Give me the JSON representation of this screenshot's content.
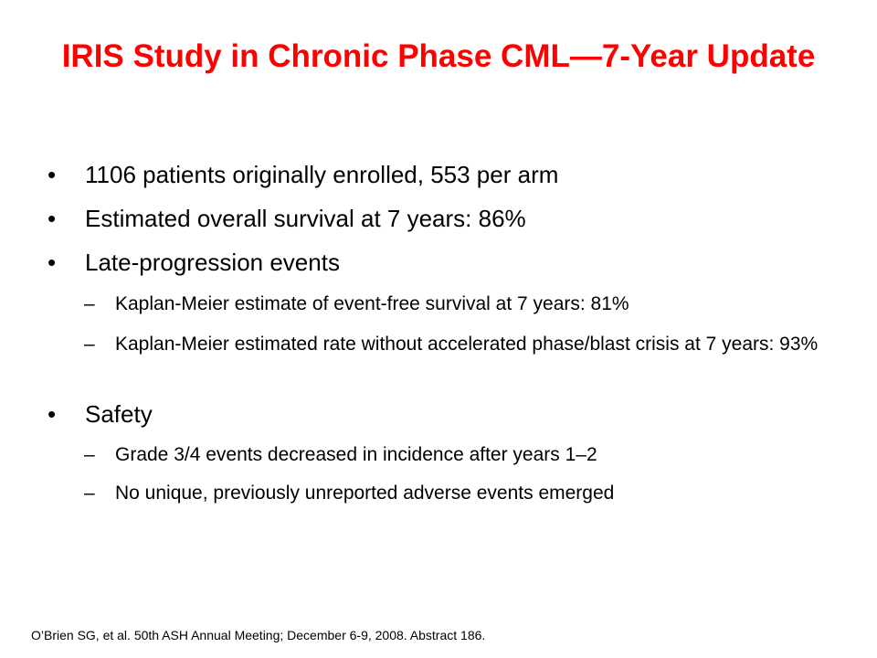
{
  "title": "IRIS Study in Chronic Phase CML—7-Year Update",
  "bullet_marker": "•",
  "sub_marker": "–",
  "bullets": [
    {
      "text": "1106 patients originally enrolled, 553 per arm"
    },
    {
      "text": "Estimated overall survival at 7 years: 86%"
    },
    {
      "text": "Late-progression events",
      "subs": [
        "Kaplan-Meier estimate of event-free survival at 7 years: 81%",
        "Kaplan-Meier estimated rate without accelerated phase/blast crisis at 7 years: 93%"
      ]
    },
    {
      "text": "Safety",
      "subs": [
        "Grade 3/4 events decreased in incidence after years 1–2",
        "No unique, previously unreported adverse events emerged"
      ]
    }
  ],
  "footnote": "O’Brien SG, et al. 50th ASH Annual Meeting; December 6-9, 2008. Abstract 186."
}
